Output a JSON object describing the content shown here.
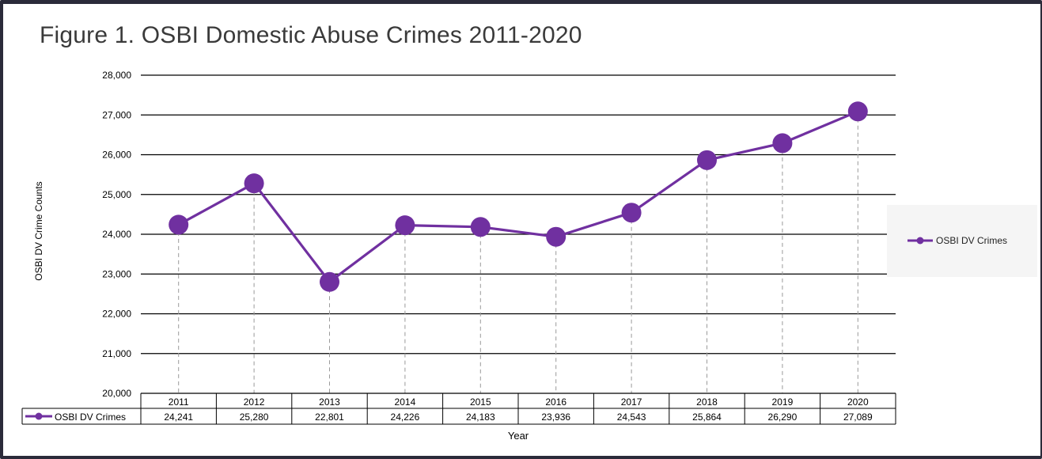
{
  "title": "Figure 1. OSBI Domestic Abuse Crimes 2011-2020",
  "chart_data": {
    "type": "line",
    "title": "Figure 1. OSBI Domestic Abuse Crimes 2011-2020",
    "xlabel": "Year",
    "ylabel": "OSBI DV Crime Counts",
    "ylim": [
      20000,
      28000
    ],
    "y_ticks": [
      "20,000",
      "21,000",
      "22,000",
      "23,000",
      "24,000",
      "25,000",
      "26,000",
      "27,000",
      "28,000"
    ],
    "categories": [
      "2011",
      "2012",
      "2013",
      "2014",
      "2015",
      "2016",
      "2017",
      "2018",
      "2019",
      "2020"
    ],
    "series": [
      {
        "name": "OSBI DV Crimes",
        "values": [
          24241,
          25280,
          22801,
          24226,
          24183,
          23936,
          24543,
          25864,
          26290,
          27089
        ],
        "labels": [
          "24,241",
          "25,280",
          "22,801",
          "24,226",
          "24,183",
          "23,936",
          "24,543",
          "25,864",
          "26,290",
          "27,089"
        ],
        "color": "#7030a0"
      }
    ],
    "grid": true,
    "data_table": true,
    "legend_position": "right"
  }
}
